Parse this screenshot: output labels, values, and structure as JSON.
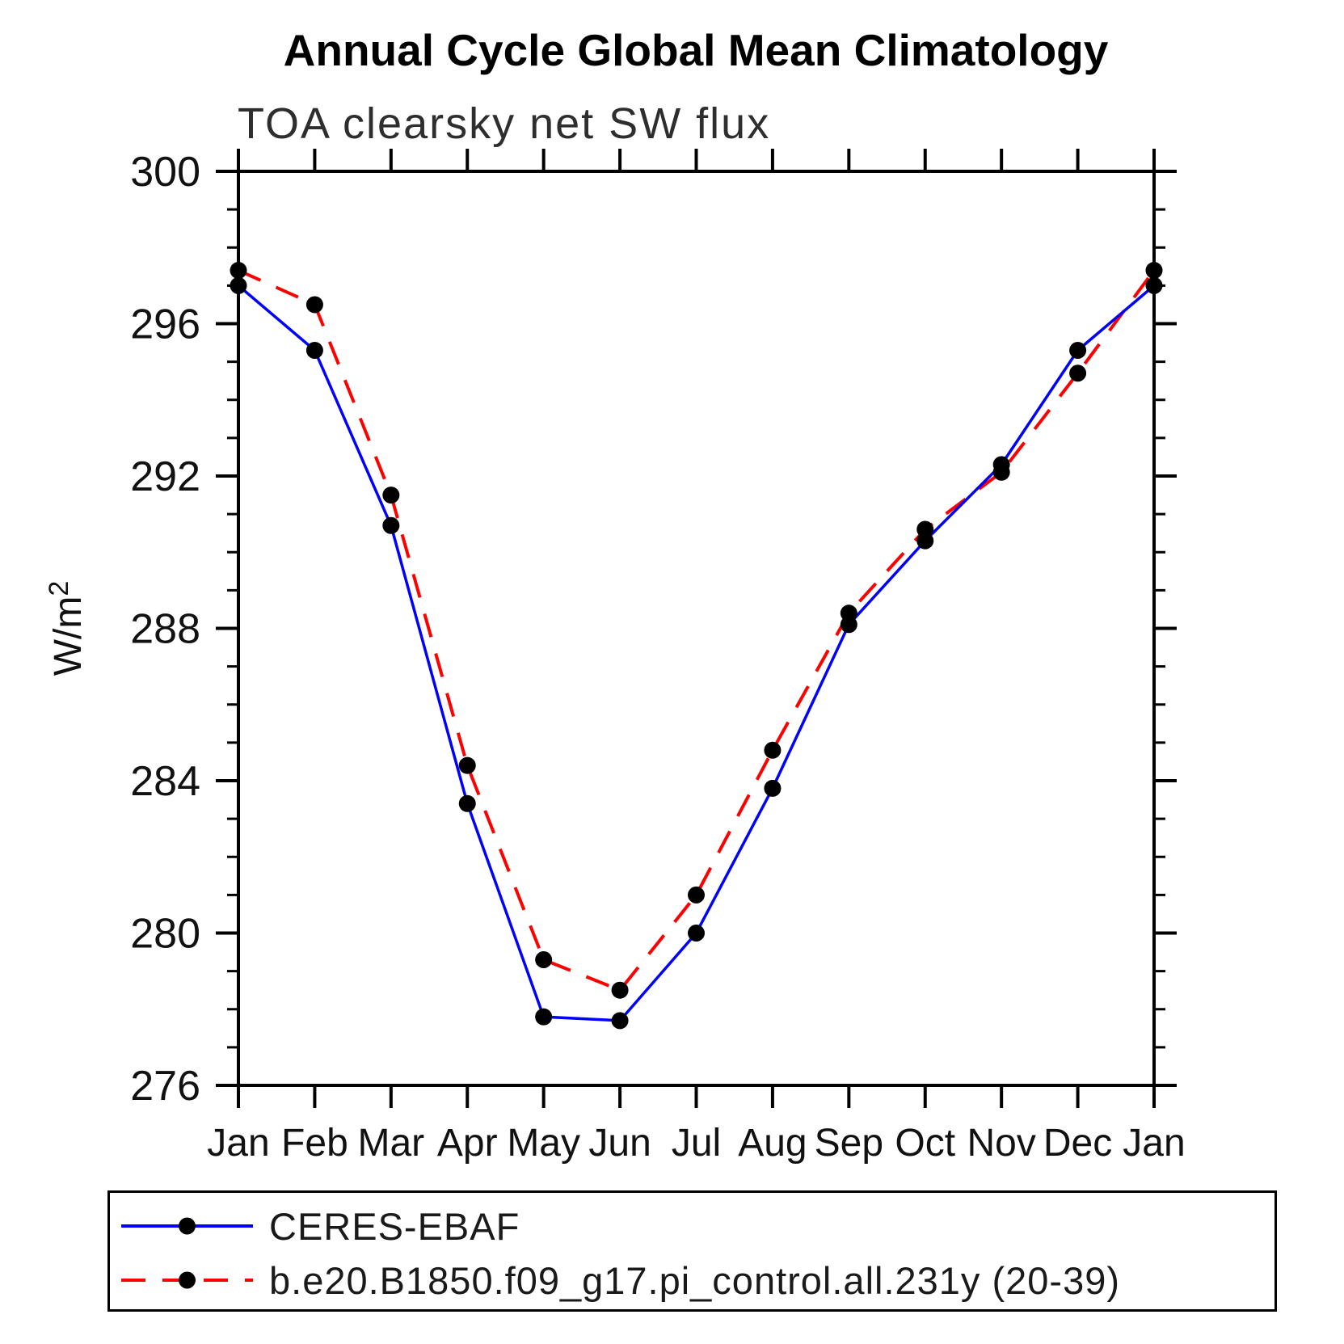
{
  "title": "Annual Cycle Global Mean Climatology",
  "subtitle": "TOA clearsky net SW flux",
  "chart_data": {
    "type": "line",
    "categories": [
      "Jan",
      "Feb",
      "Mar",
      "Apr",
      "May",
      "Jun",
      "Jul",
      "Aug",
      "Sep",
      "Oct",
      "Nov",
      "Dec",
      "Jan"
    ],
    "xlabel": "",
    "ylabel": "W/m²",
    "ylim": [
      276,
      300
    ],
    "ytick_major": [
      276,
      280,
      284,
      288,
      292,
      296,
      300
    ],
    "ytick_minor_step": 1,
    "grid": false,
    "legend_position": "bottom-left-box",
    "marker_color": "#000000",
    "axis_color": "#000000",
    "series": [
      {
        "name": "CERES-EBAF",
        "color": "#0000ff",
        "line_style": "solid",
        "marker": "circle",
        "values": [
          297.0,
          295.3,
          290.7,
          283.4,
          277.8,
          277.7,
          280.0,
          283.8,
          288.1,
          290.3,
          292.3,
          295.3,
          297.0
        ]
      },
      {
        "name": "b.e20.B1850.f09_g17.pi_control.all.231y (20-39)",
        "color": "#ff0000",
        "line_style": "dashed",
        "marker": "circle",
        "values": [
          297.4,
          296.5,
          291.5,
          284.4,
          279.3,
          278.5,
          281.0,
          284.8,
          288.4,
          290.6,
          292.1,
          294.7,
          297.4
        ]
      }
    ]
  }
}
